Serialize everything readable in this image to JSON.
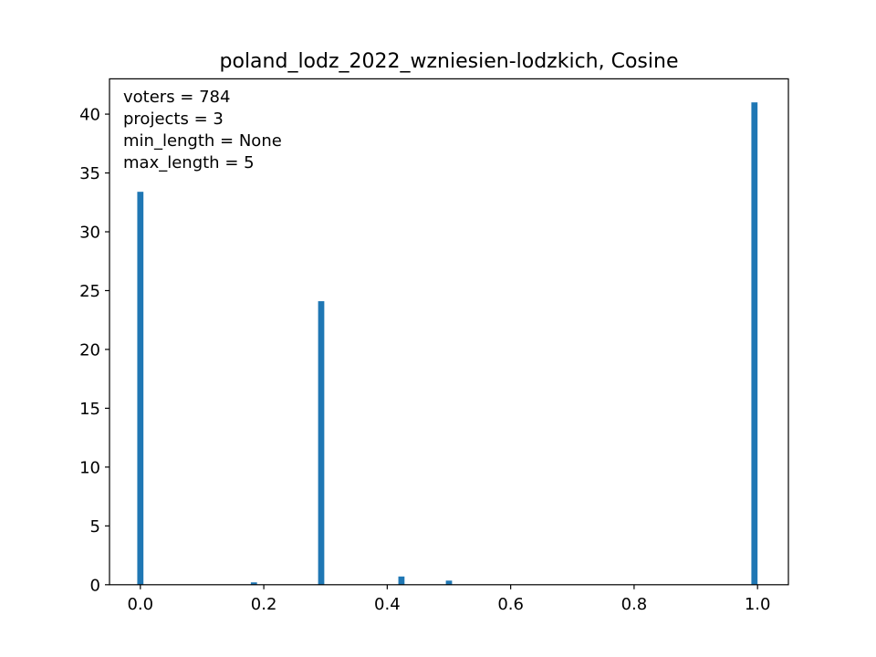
{
  "chart_data": {
    "type": "bar",
    "title": "poland_lodz_2022_wzniesien-lodzkich, Cosine",
    "xlabel": "",
    "ylabel": "",
    "xlim": [
      -0.05,
      1.05
    ],
    "ylim": [
      0,
      43
    ],
    "bin_width": 0.01,
    "bar_color": "#1f77b4",
    "grid": false,
    "x_ticks": [
      0.0,
      0.2,
      0.4,
      0.6,
      0.8,
      1.0
    ],
    "x_tick_labels": [
      "0.0",
      "0.2",
      "0.4",
      "0.6",
      "0.8",
      "1.0"
    ],
    "y_ticks": [
      0,
      5,
      10,
      15,
      20,
      25,
      30,
      35,
      40
    ],
    "y_tick_labels": [
      "0",
      "5",
      "10",
      "15",
      "20",
      "25",
      "30",
      "35",
      "40"
    ],
    "bars": [
      {
        "x": 0.0,
        "value": 33.4
      },
      {
        "x": 0.184,
        "value": 0.2
      },
      {
        "x": 0.293,
        "value": 24.1
      },
      {
        "x": 0.423,
        "value": 0.7
      },
      {
        "x": 0.5,
        "value": 0.35
      },
      {
        "x": 0.995,
        "value": 41.0
      }
    ],
    "annotations": [
      "voters = 784",
      "projects = 3",
      "min_length = None",
      "max_length = 5"
    ]
  }
}
